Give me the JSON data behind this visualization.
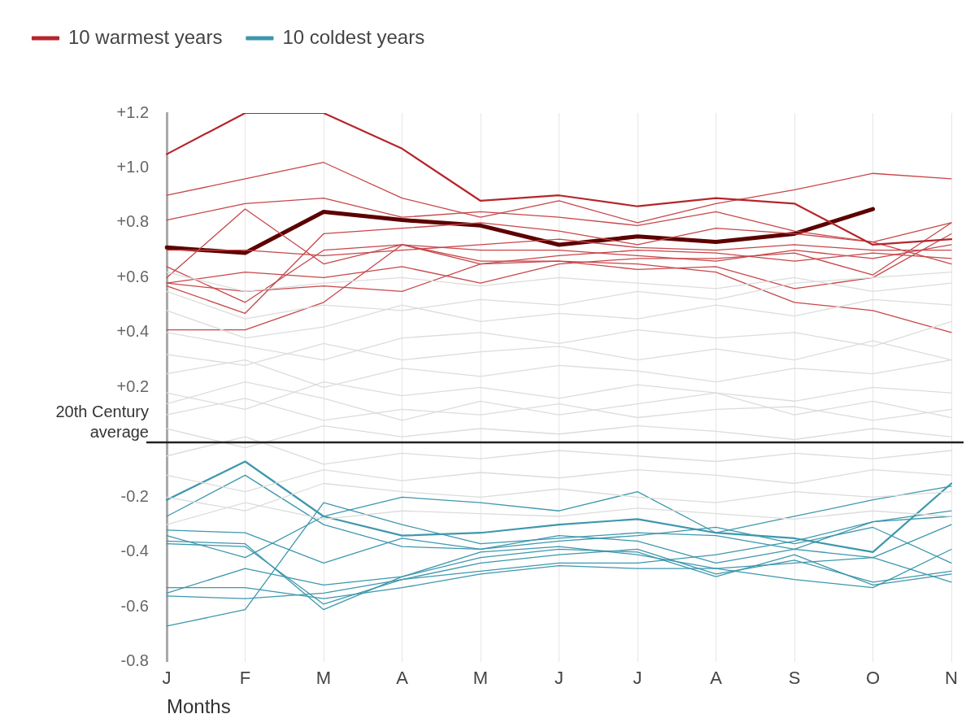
{
  "chart_data": {
    "type": "line",
    "xlabel": "Months",
    "categories": [
      "J",
      "F",
      "M",
      "A",
      "M",
      "J",
      "J",
      "A",
      "S",
      "O",
      "N"
    ],
    "ylim": [
      -0.8,
      1.2
    ],
    "yticks": [
      {
        "value": 1.2,
        "label": "+1.2"
      },
      {
        "value": 1.0,
        "label": "+1.0"
      },
      {
        "value": 0.8,
        "label": "+0.8"
      },
      {
        "value": 0.6,
        "label": "+0.6"
      },
      {
        "value": 0.4,
        "label": "+0.4"
      },
      {
        "value": 0.2,
        "label": "+0.2"
      },
      {
        "value": 0,
        "label": null
      },
      -0.2,
      -0.4,
      -0.6,
      -0.8
    ],
    "grid": "x",
    "legend": "top left",
    "marker": "none",
    "line_style": "solid",
    "ref_lines": [
      {
        "axis": "y",
        "value": 0,
        "label": "20th Century average",
        "color": "#222222"
      }
    ],
    "series": [
      {
        "color": "#dcdcdc",
        "values": [
          0.55,
          0.45,
          0.5,
          0.48,
          0.52,
          0.5,
          0.55,
          0.52,
          0.58,
          0.6,
          0.62
        ]
      },
      {
        "color": "#dcdcdc",
        "values": [
          0.48,
          0.38,
          0.42,
          0.5,
          0.44,
          0.47,
          0.45,
          0.5,
          0.46,
          0.52,
          0.5
        ]
      },
      {
        "color": "#dcdcdc",
        "values": [
          0.4,
          0.35,
          0.3,
          0.38,
          0.4,
          0.36,
          0.41,
          0.38,
          0.4,
          0.35,
          0.44
        ]
      },
      {
        "color": "#dcdcdc",
        "values": [
          0.32,
          0.28,
          0.36,
          0.3,
          0.33,
          0.35,
          0.3,
          0.34,
          0.3,
          0.37,
          0.3
        ]
      },
      {
        "color": "#dcdcdc",
        "values": [
          0.25,
          0.3,
          0.2,
          0.27,
          0.24,
          0.28,
          0.26,
          0.22,
          0.27,
          0.25,
          0.3
        ]
      },
      {
        "color": "#dcdcdc",
        "values": [
          0.18,
          0.12,
          0.22,
          0.17,
          0.2,
          0.16,
          0.21,
          0.18,
          0.15,
          0.2,
          0.18
        ]
      },
      {
        "color": "#dcdcdc",
        "values": [
          0.1,
          0.16,
          0.08,
          0.12,
          0.1,
          0.14,
          0.09,
          0.12,
          0.13,
          0.08,
          0.12
        ]
      },
      {
        "color": "#dcdcdc",
        "values": [
          0.05,
          -0.02,
          0.06,
          0.02,
          0.05,
          0.03,
          0.06,
          0.04,
          0.01,
          0.05,
          0.02
        ]
      },
      {
        "color": "#dcdcdc",
        "values": [
          -0.05,
          0.02,
          -0.08,
          -0.04,
          -0.06,
          -0.03,
          -0.05,
          -0.07,
          -0.04,
          -0.06,
          -0.03
        ]
      },
      {
        "color": "#dcdcdc",
        "values": [
          -0.12,
          -0.18,
          -0.1,
          -0.14,
          -0.11,
          -0.13,
          -0.1,
          -0.12,
          -0.15,
          -0.1,
          -0.12
        ]
      },
      {
        "color": "#dcdcdc",
        "values": [
          -0.2,
          -0.25,
          -0.15,
          -0.18,
          -0.2,
          -0.17,
          -0.2,
          -0.22,
          -0.18,
          -0.2,
          -0.18
        ]
      },
      {
        "color": "#dcdcdc",
        "values": [
          -0.3,
          -0.22,
          -0.28,
          -0.25,
          -0.26,
          -0.27,
          -0.24,
          -0.26,
          -0.28,
          -0.25,
          -0.27
        ]
      },
      {
        "color": "#dcdcdc",
        "values": [
          0.62,
          0.55,
          0.58,
          0.6,
          0.57,
          0.6,
          0.58,
          0.56,
          0.6,
          0.55,
          0.58
        ]
      },
      {
        "color": "#dcdcdc",
        "values": [
          0.14,
          0.22,
          0.16,
          0.08,
          0.15,
          0.1,
          0.14,
          0.18,
          0.1,
          0.15,
          0.09
        ]
      },
      {
        "color": "#3d97ad",
        "name": "10 coldest years",
        "values": [
          -0.21,
          -0.07,
          -0.27,
          -0.34,
          -0.33,
          -0.3,
          -0.28,
          -0.33,
          -0.35,
          -0.4,
          -0.15
        ]
      },
      {
        "color": "#3d97ad",
        "values": [
          -0.27,
          -0.12,
          -0.3,
          -0.38,
          -0.39,
          -0.36,
          -0.34,
          -0.31,
          -0.37,
          -0.31,
          -0.44
        ]
      },
      {
        "color": "#3d97ad",
        "values": [
          -0.36,
          -0.37,
          -0.61,
          -0.49,
          -0.42,
          -0.39,
          -0.4,
          -0.49,
          -0.41,
          -0.52,
          -0.48
        ]
      },
      {
        "color": "#3d97ad",
        "values": [
          -0.37,
          -0.38,
          -0.59,
          -0.5,
          -0.44,
          -0.41,
          -0.39,
          -0.48,
          -0.43,
          -0.51,
          -0.47
        ]
      },
      {
        "color": "#3d97ad",
        "values": [
          -0.55,
          -0.46,
          -0.52,
          -0.49,
          -0.4,
          -0.38,
          -0.41,
          -0.46,
          -0.44,
          -0.42,
          -0.51
        ]
      },
      {
        "color": "#3d97ad",
        "values": [
          -0.67,
          -0.61,
          -0.22,
          -0.3,
          -0.37,
          -0.35,
          -0.33,
          -0.34,
          -0.39,
          -0.29,
          -0.25
        ]
      },
      {
        "color": "#3d97ad",
        "values": [
          -0.34,
          -0.42,
          -0.27,
          -0.2,
          -0.22,
          -0.25,
          -0.18,
          -0.33,
          -0.27,
          -0.21,
          -0.16
        ]
      },
      {
        "color": "#3d97ad",
        "values": [
          -0.32,
          -0.33,
          -0.44,
          -0.35,
          -0.39,
          -0.34,
          -0.36,
          -0.44,
          -0.39,
          -0.42,
          -0.3
        ]
      },
      {
        "color": "#3d97ad",
        "values": [
          -0.53,
          -0.53,
          -0.57,
          -0.53,
          -0.48,
          -0.45,
          -0.46,
          -0.46,
          -0.5,
          -0.53,
          -0.39
        ]
      },
      {
        "color": "#3d97ad",
        "values": [
          -0.56,
          -0.57,
          -0.55,
          -0.5,
          -0.47,
          -0.44,
          -0.44,
          -0.41,
          -0.36,
          -0.29,
          -0.27
        ]
      },
      {
        "color": "#b5262c",
        "name": "10 warmest years",
        "values": [
          1.05,
          1.2,
          1.2,
          1.07,
          0.88,
          0.9,
          0.86,
          0.89,
          0.87,
          0.72,
          0.74
        ]
      },
      {
        "color": "#c8464a",
        "values": [
          0.9,
          0.96,
          1.02,
          0.89,
          0.82,
          0.88,
          0.8,
          0.87,
          0.92,
          0.98,
          0.96
        ]
      },
      {
        "color": "#c8464a",
        "values": [
          0.81,
          0.87,
          0.89,
          0.82,
          0.84,
          0.82,
          0.79,
          0.84,
          0.77,
          0.73,
          0.8
        ]
      },
      {
        "color": "#c8464a",
        "values": [
          0.6,
          0.85,
          0.65,
          0.72,
          0.7,
          0.7,
          0.68,
          0.66,
          0.7,
          0.67,
          0.72
        ]
      },
      {
        "color": "#c8464a",
        "values": [
          0.57,
          0.47,
          0.76,
          0.78,
          0.8,
          0.77,
          0.72,
          0.78,
          0.76,
          0.73,
          0.65
        ]
      },
      {
        "color": "#c8464a",
        "values": [
          0.41,
          0.41,
          0.51,
          0.72,
          0.66,
          0.66,
          0.65,
          0.62,
          0.51,
          0.48,
          0.4
        ]
      },
      {
        "color": "#c8464a",
        "values": [
          0.64,
          0.51,
          0.7,
          0.72,
          0.65,
          0.66,
          0.63,
          0.64,
          0.56,
          0.6,
          0.76
        ]
      },
      {
        "color": "#c8464a",
        "values": [
          0.58,
          0.62,
          0.6,
          0.64,
          0.58,
          0.65,
          0.67,
          0.67,
          0.69,
          0.61,
          0.8
        ]
      },
      {
        "color": "#c8464a",
        "values": [
          0.58,
          0.55,
          0.57,
          0.55,
          0.65,
          0.68,
          0.7,
          0.69,
          0.66,
          0.69,
          0.67
        ]
      },
      {
        "color": "#c8464a",
        "values": [
          0.7,
          0.7,
          0.68,
          0.7,
          0.72,
          0.74,
          0.71,
          0.7,
          0.72,
          0.7,
          0.7
        ]
      },
      {
        "color": "#5c0000",
        "values": [
          0.71,
          0.69,
          0.84,
          0.81,
          0.79,
          0.72,
          0.75,
          0.73,
          0.76,
          0.85,
          null
        ]
      }
    ]
  }
}
